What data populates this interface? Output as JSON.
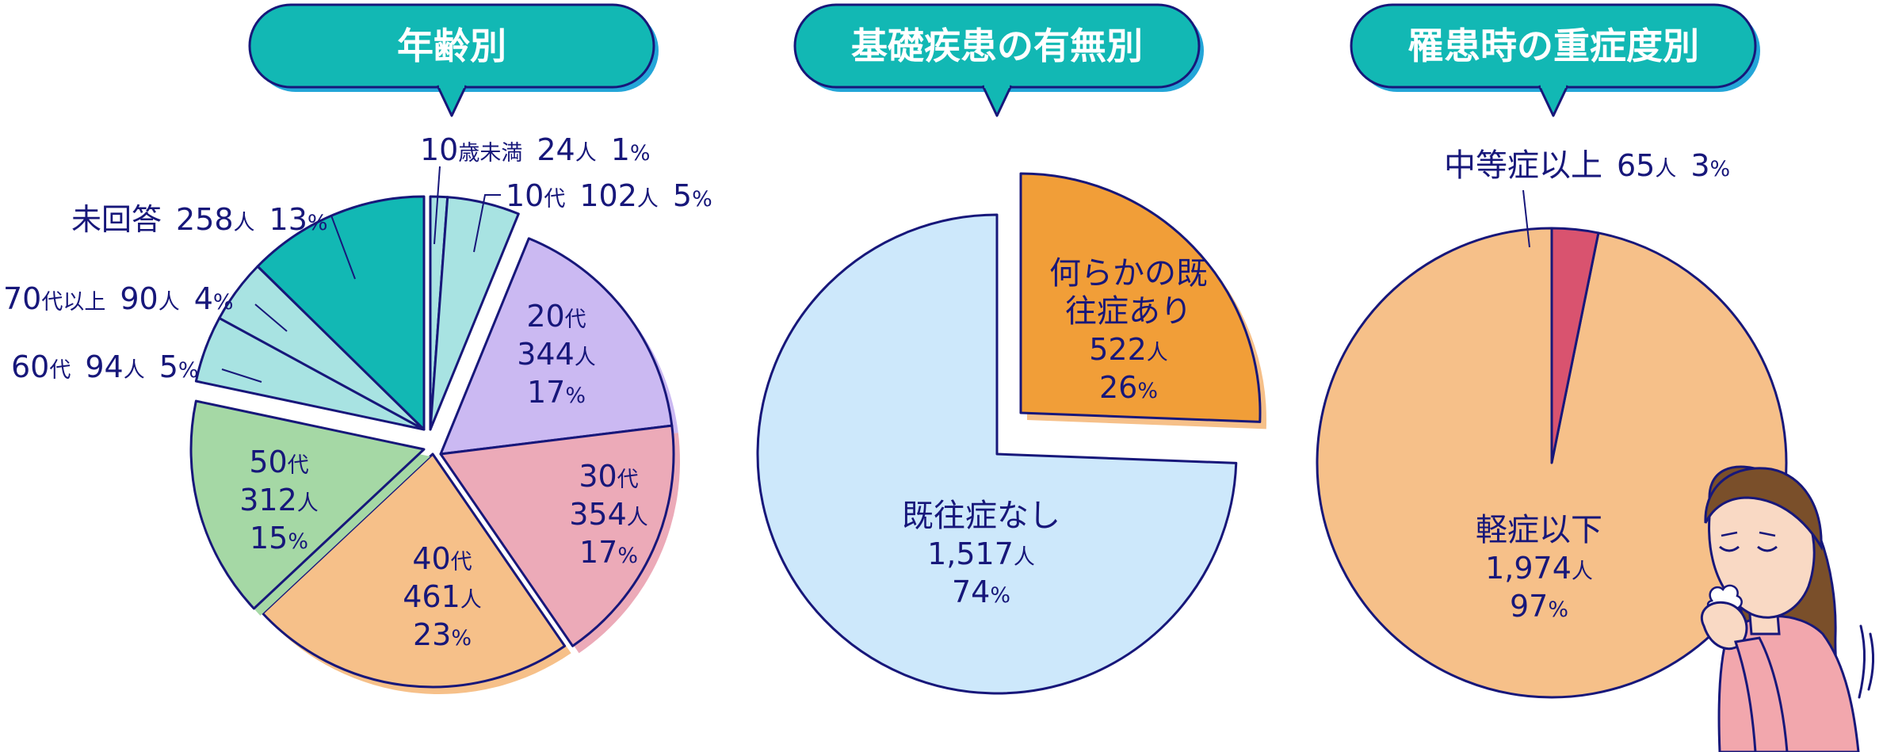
{
  "colors": {
    "navy": "#17177a",
    "teal_header": "#12b8b4",
    "header_shadow": "#23a6d8"
  },
  "chart_data": [
    {
      "type": "pie",
      "title": "年齢別",
      "slices": [
        {
          "category": "10歳未満",
          "count": "24",
          "unit": "人",
          "percent": "1",
          "value": 24,
          "color": "#a8e3e2"
        },
        {
          "category": "10代",
          "count": "102",
          "unit": "人",
          "percent": "5",
          "value": 102,
          "color": "#a8e3e2"
        },
        {
          "category": "20代",
          "count": "344",
          "unit": "人",
          "percent": "17",
          "value": 344,
          "color": "#cbb9f2"
        },
        {
          "category": "30代",
          "count": "354",
          "unit": "人",
          "percent": "17",
          "value": 354,
          "color": "#ecaab8"
        },
        {
          "category": "40代",
          "count": "461",
          "unit": "人",
          "percent": "23",
          "value": 461,
          "color": "#f6c089"
        },
        {
          "category": "50代",
          "count": "312",
          "unit": "人",
          "percent": "15",
          "value": 312,
          "color": "#a5d8a5"
        },
        {
          "category": "60代",
          "count": "94",
          "unit": "人",
          "percent": "5",
          "value": 94,
          "color": "#a8e3e2"
        },
        {
          "category": "70代以上",
          "count": "90",
          "unit": "人",
          "percent": "4",
          "value": 90,
          "color": "#a8e3e2"
        },
        {
          "category": "未回答",
          "count": "258",
          "unit": "人",
          "percent": "13",
          "value": 258,
          "color": "#12b8b4"
        }
      ]
    },
    {
      "type": "pie",
      "title": "基礎疾患の有無別",
      "slices": [
        {
          "category": "何らかの既往症あり",
          "count": "522",
          "unit": "人",
          "percent": "26",
          "value": 522,
          "color": "#f19e38"
        },
        {
          "category": "既往症なし",
          "count": "1,517",
          "unit": "人",
          "percent": "74",
          "value": 1517,
          "color": "#cde8fb"
        }
      ]
    },
    {
      "type": "pie",
      "title": "罹患時の重症度別",
      "slices": [
        {
          "category": "中等症以上",
          "count": "65",
          "unit": "人",
          "percent": "3",
          "value": 65,
          "color": "#d9536f"
        },
        {
          "category": "軽症以下",
          "count": "1,974",
          "unit": "人",
          "percent": "97",
          "value": 1974,
          "color": "#f6c089"
        }
      ]
    }
  ]
}
